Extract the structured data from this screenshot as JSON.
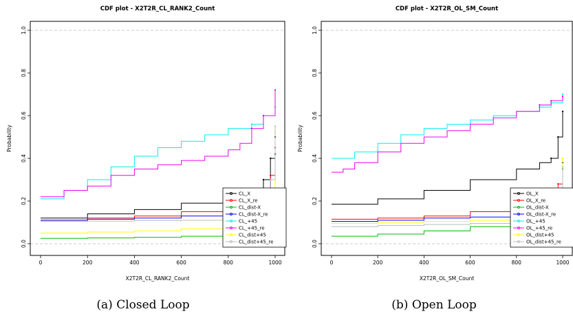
{
  "figure": {
    "captions": [
      "(a) Closed Loop",
      "(b) Open Loop"
    ]
  },
  "chart_data": [
    {
      "type": "line",
      "title": "CDF plot -  X2T2R_CL_RANK2_Count",
      "xlabel": "X2T2R_CL_RANK2_Count",
      "ylabel": "Probability",
      "xlim": [
        0,
        1000
      ],
      "ylim": [
        0,
        1.0
      ],
      "x_ticks": [
        "0",
        "200",
        "400",
        "600",
        "800",
        "1000"
      ],
      "y_ticks": [
        "0.0",
        "0.2",
        "0.4",
        "0.6",
        "0.8",
        "1.0"
      ],
      "reference_lines": [
        0.0,
        1.0
      ],
      "legend_position": "bottom-right",
      "series": [
        {
          "name": "CL_X",
          "color": "#000000",
          "marker": "circle",
          "x": [
            0,
            200,
            400,
            600,
            800,
            900,
            950,
            980,
            1000
          ],
          "y": [
            0.12,
            0.14,
            0.16,
            0.19,
            0.22,
            0.25,
            0.3,
            0.4,
            0.5
          ]
        },
        {
          "name": "CL_X_re",
          "color": "#ff0000",
          "marker": "triangle",
          "x": [
            0,
            200,
            400,
            600,
            800,
            900,
            950,
            980,
            1000
          ],
          "y": [
            0.11,
            0.12,
            0.13,
            0.15,
            0.18,
            0.2,
            0.25,
            0.32,
            0.45
          ]
        },
        {
          "name": "CL_dist-X",
          "color": "#00bb00",
          "marker": "plus",
          "x": [
            0,
            200,
            400,
            600,
            800,
            900,
            950,
            980,
            1000
          ],
          "y": [
            0.025,
            0.027,
            0.03,
            0.035,
            0.045,
            0.07,
            0.12,
            0.2,
            0.42
          ]
        },
        {
          "name": "CL_dist-X_re",
          "color": "#0000ff",
          "marker": "x",
          "x": [
            0,
            200,
            400,
            600,
            800,
            900,
            950,
            980,
            1000
          ],
          "y": [
            0.11,
            0.115,
            0.12,
            0.13,
            0.135,
            0.14,
            0.2,
            0.3,
            0.42
          ]
        },
        {
          "name": "CL_+45",
          "color": "#00eeee",
          "marker": "diamond",
          "x": [
            0,
            100,
            200,
            300,
            400,
            500,
            600,
            700,
            800,
            850,
            900,
            950,
            1000
          ],
          "y": [
            0.21,
            0.25,
            0.3,
            0.36,
            0.41,
            0.45,
            0.48,
            0.51,
            0.54,
            0.54,
            0.56,
            0.6,
            0.64
          ]
        },
        {
          "name": "CL_+45_re",
          "color": "#ee00ee",
          "marker": "triangle-down",
          "x": [
            0,
            100,
            200,
            300,
            400,
            500,
            600,
            700,
            800,
            850,
            900,
            950,
            1000
          ],
          "y": [
            0.22,
            0.25,
            0.27,
            0.32,
            0.35,
            0.37,
            0.39,
            0.41,
            0.44,
            0.47,
            0.54,
            0.6,
            0.72
          ]
        },
        {
          "name": "CL_dist+45",
          "color": "#ffff00",
          "marker": "square",
          "x": [
            0,
            200,
            400,
            600,
            800,
            900,
            950,
            980,
            1000
          ],
          "y": [
            0.05,
            0.055,
            0.06,
            0.07,
            0.09,
            0.11,
            0.15,
            0.25,
            0.52
          ]
        },
        {
          "name": "CL_dist+45_re",
          "color": "#bbbbbb",
          "marker": "asterisk",
          "x": [
            0,
            200,
            400,
            600,
            800,
            900,
            950,
            980,
            1000
          ],
          "y": [
            0.105,
            0.106,
            0.108,
            0.11,
            0.115,
            0.12,
            0.15,
            0.3,
            0.55
          ]
        }
      ]
    },
    {
      "type": "line",
      "title": "CDF plot -  X2T2R_OL_SM_Count",
      "xlabel": "X2T2R_OL_SM_Count",
      "ylabel": "Probability",
      "xlim": [
        0,
        1000
      ],
      "ylim": [
        0,
        1.0
      ],
      "x_ticks": [
        "0",
        "200",
        "400",
        "600",
        "800",
        "1000"
      ],
      "y_ticks": [
        "0.0",
        "0.2",
        "0.4",
        "0.6",
        "0.8",
        "1.0"
      ],
      "reference_lines": [
        0.0,
        1.0
      ],
      "legend_position": "bottom-right",
      "series": [
        {
          "name": "OL_X",
          "color": "#000000",
          "marker": "circle",
          "x": [
            0,
            200,
            400,
            600,
            800,
            900,
            950,
            980,
            1000
          ],
          "y": [
            0.185,
            0.21,
            0.25,
            0.3,
            0.35,
            0.38,
            0.4,
            0.5,
            0.62
          ]
        },
        {
          "name": "OL_X_re",
          "color": "#ff0000",
          "marker": "triangle",
          "x": [
            0,
            200,
            400,
            600,
            800,
            900,
            950,
            980,
            1000
          ],
          "y": [
            0.115,
            0.12,
            0.13,
            0.15,
            0.18,
            0.2,
            0.22,
            0.28,
            0.38
          ]
        },
        {
          "name": "OL_dist-X",
          "color": "#00bb00",
          "marker": "plus",
          "x": [
            0,
            200,
            400,
            600,
            800,
            900,
            950,
            980,
            1000
          ],
          "y": [
            0.035,
            0.045,
            0.06,
            0.08,
            0.1,
            0.12,
            0.15,
            0.2,
            0.35
          ]
        },
        {
          "name": "OL_dist-X_re",
          "color": "#0000ff",
          "marker": "x",
          "x": [
            0,
            200,
            400,
            600,
            800,
            900,
            950,
            980,
            1000
          ],
          "y": [
            0.105,
            0.11,
            0.12,
            0.125,
            0.13,
            0.14,
            0.17,
            0.25,
            0.38
          ]
        },
        {
          "name": "OL_+45",
          "color": "#00eeee",
          "marker": "diamond",
          "x": [
            0,
            100,
            200,
            300,
            400,
            500,
            600,
            700,
            800,
            900,
            950,
            1000
          ],
          "y": [
            0.4,
            0.43,
            0.47,
            0.51,
            0.54,
            0.56,
            0.58,
            0.6,
            0.62,
            0.64,
            0.66,
            0.7
          ]
        },
        {
          "name": "OL_+45_re",
          "color": "#ee00ee",
          "marker": "triangle-down",
          "x": [
            0,
            50,
            100,
            200,
            300,
            400,
            500,
            600,
            700,
            800,
            900,
            950,
            1000
          ],
          "y": [
            0.335,
            0.35,
            0.38,
            0.43,
            0.47,
            0.5,
            0.53,
            0.56,
            0.59,
            0.62,
            0.65,
            0.67,
            0.69
          ]
        },
        {
          "name": "OL_dist+45",
          "color": "#ffff00",
          "marker": "square",
          "x": [
            0,
            200,
            400,
            600,
            800,
            900,
            950,
            980,
            1000
          ],
          "y": [
            0.095,
            0.1,
            0.105,
            0.11,
            0.12,
            0.14,
            0.17,
            0.25,
            0.4
          ]
        },
        {
          "name": "OL_dist+45_re",
          "color": "#bbbbbb",
          "marker": "asterisk",
          "x": [
            0,
            200,
            400,
            600,
            800,
            900,
            950,
            980,
            1000
          ],
          "y": [
            0.08,
            0.085,
            0.09,
            0.095,
            0.1,
            0.11,
            0.15,
            0.22,
            0.36
          ]
        }
      ]
    }
  ]
}
